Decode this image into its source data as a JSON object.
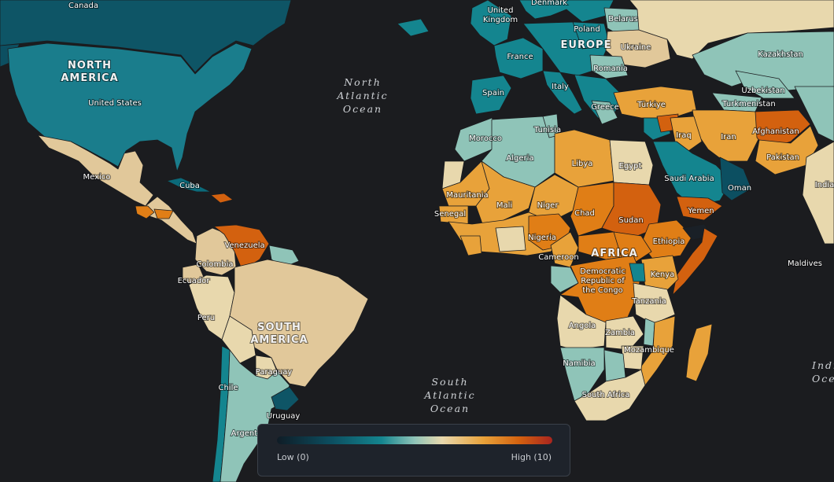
{
  "colors": {
    "ocean": "#1b1c1f",
    "scale": [
      "#0f1c26",
      "#0c4f61",
      "#14858f",
      "#8fc4b8",
      "#e8d8ad",
      "#e8a23a",
      "#d3610f",
      "#a9251f"
    ]
  },
  "continents": {
    "north_america": [
      "NORTH",
      "AMERICA"
    ],
    "south_america": [
      "SOUTH",
      "AMERICA"
    ],
    "europe": "EUROPE",
    "africa": "AFRICA"
  },
  "oceans": {
    "north_atlantic": [
      "North",
      "Atlantic",
      "Ocean"
    ],
    "south_atlantic": [
      "South",
      "Atlantic",
      "Ocean"
    ],
    "indian": [
      "Indi",
      "Oce"
    ]
  },
  "countries": {
    "canada": "Canada",
    "united_states": "United States",
    "mexico": "Mexico",
    "cuba": "Cuba",
    "venezuela": "Venezuela",
    "colombia": "Colombia",
    "ecuador": "Ecuador",
    "peru": "Peru",
    "paraguay": "Paraguay",
    "chile": "Chile",
    "uruguay": "Uruguay",
    "argentina": "Argentina",
    "denmark": "Denmark",
    "united_kingdom": [
      "United",
      "Kingdom"
    ],
    "poland": "Poland",
    "belarus": "Belarus",
    "ukraine": "Ukraine",
    "france": "France",
    "romania": "Romania",
    "italy": "Italy",
    "spain": "Spain",
    "greece": "Greece",
    "turkiye": "Türkiye",
    "kazakhstan": "Kazakhstan",
    "uzbekistan": "Uzbekistan",
    "turkmenistan": "Turkmenistan",
    "afghanistan": "Afghanistan",
    "iraq": "Iraq",
    "iran": "Iran",
    "pakistan": "Pakistan",
    "india": "India",
    "saudi_arabia": "Saudi Arabia",
    "oman": "Oman",
    "yemen": "Yemen",
    "maldives": "Maldives",
    "tunisia": "Tunisia",
    "morocco": "Morocco",
    "algeria": "Algeria",
    "libya": "Libya",
    "egypt": "Egypt",
    "mauritania": "Mauritania",
    "mali": "Mali",
    "niger": "Niger",
    "senegal": "Senegal",
    "chad": "Chad",
    "sudan": "Sudan",
    "nigeria": "Nigeria",
    "ethiopia": "Ethiopia",
    "cameroon": "Cameroon",
    "drc": [
      "Democratic",
      "Republic of",
      "the Congo"
    ],
    "kenya": "Kenya",
    "tanzania": "Tanzania",
    "angola": "Angola",
    "zambia": "Zambia",
    "mozambique": "Mozambique",
    "namibia": "Namibia",
    "south_africa": "South Africa"
  },
  "legend": {
    "low": "Low (0)",
    "high": "High (10)"
  }
}
